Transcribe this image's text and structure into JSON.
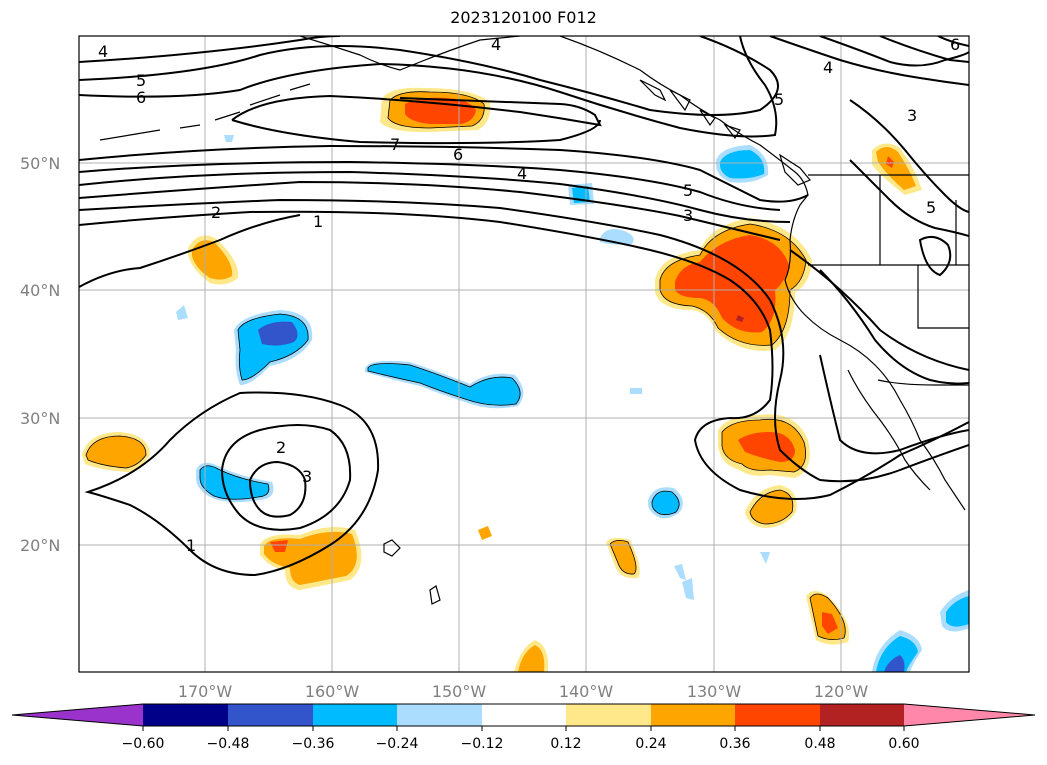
{
  "title": "2023120100 F012",
  "map": {
    "lat_labels": [
      "50°N",
      "40°N",
      "30°N",
      "20°N"
    ],
    "lon_labels": [
      "170°W",
      "160°W",
      "150°W",
      "140°W",
      "130°W",
      "120°W"
    ],
    "contour_labels": [
      "4",
      "5",
      "6",
      "7",
      "6",
      "4",
      "2",
      "1",
      "5",
      "3",
      "2",
      "3",
      "1",
      "4",
      "5",
      "4",
      "3",
      "5",
      "6"
    ],
    "colors": {
      "neg4": "#9933cc",
      "neg3": "#000088",
      "neg2": "#3355cc",
      "neg1": "#00bbff",
      "neg0": "#aaddff",
      "zero": "#ffffff",
      "pos0": "#ffe88a",
      "pos1": "#ffa500",
      "pos2": "#ff4500",
      "pos3": "#b22222",
      "pos4": "#ff88aa"
    }
  },
  "colorbar": {
    "ticks": [
      "−0.60",
      "−0.48",
      "−0.36",
      "−0.24",
      "−0.12",
      "0.12",
      "0.24",
      "0.36",
      "0.48",
      "0.60"
    ],
    "colors": [
      "#9933cc",
      "#000088",
      "#3355cc",
      "#00bbff",
      "#aaddff",
      "#ffffff",
      "#ffe88a",
      "#ffa500",
      "#ff4500",
      "#b22222",
      "#ff88aa"
    ]
  }
}
